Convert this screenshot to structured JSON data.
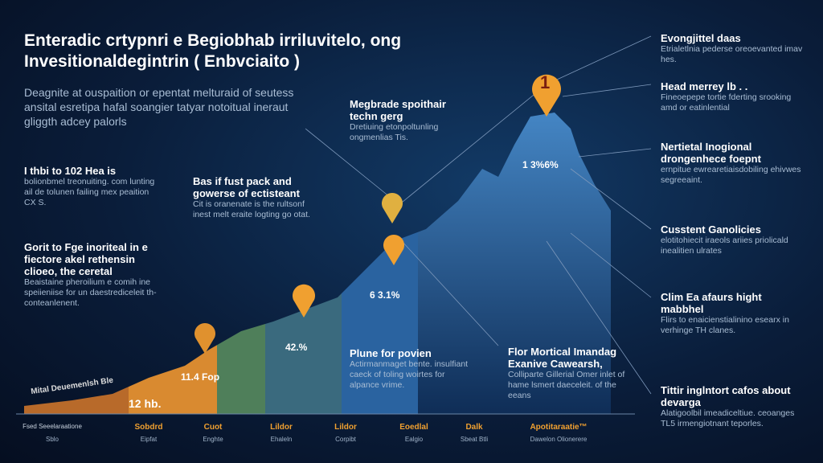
{
  "header": {
    "title": [
      "Enteradic crtypnri e Begiobhab irriluvitelo, ong",
      "Invesitionaldegintrin ( Enbvciaito )"
    ],
    "intro": "Deagnite at ouspaition or epentat melturaid of seutess ansital esretipa hafal soangier tatyar notoitual ineraut gliggth adcey palorls"
  },
  "left_blocks": [
    {
      "heading": "I thbi to 102 Hea is",
      "body": "bolionbmel treonuiting. com lunting ail de tolunen failing mex peaition CX S."
    },
    {
      "heading": "Gorit to Fge inoriteal in e fiectore akel rethensin clioeo, the ceretal",
      "body": "Beaistaine pheroilium e comih ine speiieniise for un daestrediceleit th-conteanlenent."
    }
  ],
  "callouts": [
    {
      "heading": "Bas if fust pack and gowerse of ectisteant",
      "body": "Cit is oranenate is the rultsonf inest melt eraite logting go otat."
    },
    {
      "heading": "Megbrade spoithair techn gerg",
      "body": "Dretiuing etonpoltunling ongmenlias Tis."
    },
    {
      "heading": "Plune for povien",
      "body": "Actirmanmaget bente. insulfiant caeck of toling woirtes for alpance vrime."
    },
    {
      "heading": "Flor Mortical Imandag Exanive Cawearsh,",
      "body": "Colliparte Gillerial Omer inlet of hame lsmert daeceleit. of the eeans"
    }
  ],
  "right_list": [
    {
      "heading": "Evongjittel daas",
      "body": "Etrialetlnia pederse oreoevanted imav hes."
    },
    {
      "heading": "Head merrey lb . .",
      "body": "Fineoepepe tortie fderting srooking amd or eatinlential"
    },
    {
      "heading": "Nertietal Inogional drongenhece foepnt",
      "body": "ernpitue ewrearetiaisdobiling ehivwes segreeaint."
    },
    {
      "heading": "Cusstent Ganolicies",
      "body": "elotitohiecit iraeols ariies priolicald inealitien ulrates"
    },
    {
      "heading": "Clim Ea afaurs hight mabbhel",
      "body": "Flirs to enaicienstialinino esearx in verhinge TH clanes."
    },
    {
      "heading": "Tittir inglntort cafos about devarga",
      "body": "Alatigoolbil imeadiceltiue. ceoanges TL5 irmengiotnant teporles."
    }
  ],
  "chart_labels": [
    "Mital Deuemenlsh Ble",
    "12 hb.",
    "11.4 Fop",
    "42.%",
    "6 3.1%",
    "1 3%6%"
  ],
  "marker": "1",
  "bottom": [
    {
      "label": "Fsed Seeelaraatione",
      "sub": "Sblo"
    },
    {
      "label": "Sobdrd",
      "sub": "Eipfat"
    },
    {
      "label": "Cuot",
      "sub": "Enghte"
    },
    {
      "label": "Lildor",
      "sub": "Ehaleln"
    },
    {
      "label": "Lildor",
      "sub": "Corpibt"
    },
    {
      "label": "Eoedlal",
      "sub": "Ealgio"
    },
    {
      "label": "Dalk",
      "sub": "Sbeat Btli"
    },
    {
      "label": "Apotitaraatie™",
      "sub": "Dawelon Olionerere"
    }
  ]
}
